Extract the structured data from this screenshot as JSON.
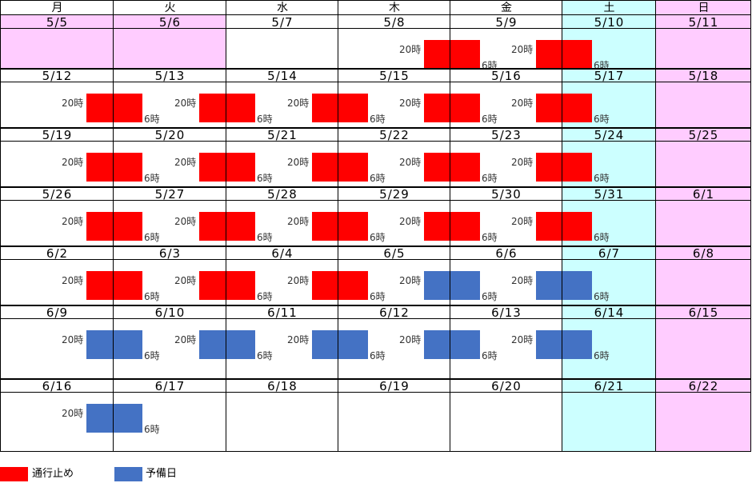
{
  "colors": {
    "weekday": "#ffffff",
    "saturday": "#ccffff",
    "holiday": "#ffccff",
    "closure": "#ff0000",
    "reserve": "#4472c4",
    "grid": "#000000"
  },
  "weekdays": [
    "月",
    "火",
    "水",
    "木",
    "金",
    "土",
    "日"
  ],
  "weeks": [
    {
      "dates": [
        "5/5",
        "5/6",
        "5/7",
        "5/8",
        "5/9",
        "5/10",
        "5/11"
      ],
      "bg": [
        "holiday",
        "holiday",
        "weekday",
        "weekday",
        "weekday",
        "saturday",
        "holiday"
      ],
      "bars": [
        null,
        null,
        null,
        "closure",
        "closure",
        null,
        null
      ]
    },
    {
      "dates": [
        "5/12",
        "5/13",
        "5/14",
        "5/15",
        "5/16",
        "5/17",
        "5/18"
      ],
      "bg": [
        "weekday",
        "weekday",
        "weekday",
        "weekday",
        "weekday",
        "saturday",
        "holiday"
      ],
      "bars": [
        "closure",
        "closure",
        "closure",
        "closure",
        "closure",
        null,
        null
      ]
    },
    {
      "dates": [
        "5/19",
        "5/20",
        "5/21",
        "5/22",
        "5/23",
        "5/24",
        "5/25"
      ],
      "bg": [
        "weekday",
        "weekday",
        "weekday",
        "weekday",
        "weekday",
        "saturday",
        "holiday"
      ],
      "bars": [
        "closure",
        "closure",
        "closure",
        "closure",
        "closure",
        null,
        null
      ]
    },
    {
      "dates": [
        "5/26",
        "5/27",
        "5/28",
        "5/29",
        "5/30",
        "5/31",
        "6/1"
      ],
      "bg": [
        "weekday",
        "weekday",
        "weekday",
        "weekday",
        "weekday",
        "saturday",
        "holiday"
      ],
      "bars": [
        "closure",
        "closure",
        "closure",
        "closure",
        "closure",
        null,
        null
      ]
    },
    {
      "dates": [
        "6/2",
        "6/3",
        "6/4",
        "6/5",
        "6/6",
        "6/7",
        "6/8"
      ],
      "bg": [
        "weekday",
        "weekday",
        "weekday",
        "weekday",
        "weekday",
        "saturday",
        "holiday"
      ],
      "bars": [
        "closure",
        "closure",
        "closure",
        "reserve",
        "reserve",
        null,
        null
      ]
    },
    {
      "dates": [
        "6/9",
        "6/10",
        "6/11",
        "6/12",
        "6/13",
        "6/14",
        "6/15"
      ],
      "bg": [
        "weekday",
        "weekday",
        "weekday",
        "weekday",
        "weekday",
        "saturday",
        "holiday"
      ],
      "bars": [
        "reserve",
        "reserve",
        "reserve",
        "reserve",
        "reserve",
        null,
        null
      ]
    },
    {
      "dates": [
        "6/16",
        "6/17",
        "6/18",
        "6/19",
        "6/20",
        "6/21",
        "6/22"
      ],
      "bg": [
        "weekday",
        "weekday",
        "weekday",
        "weekday",
        "weekday",
        "saturday",
        "holiday"
      ],
      "bars": [
        "reserve",
        null,
        null,
        null,
        null,
        null,
        null
      ]
    }
  ],
  "bar_labels": {
    "start": "20時",
    "end": "6時"
  },
  "legend": [
    {
      "color": "closure",
      "label": "通行止め"
    },
    {
      "color": "reserve",
      "label": "予備日"
    }
  ]
}
